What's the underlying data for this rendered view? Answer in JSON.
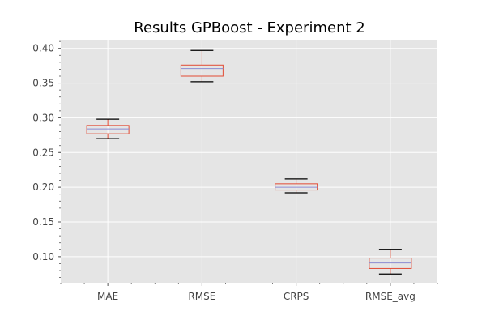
{
  "chart_data": {
    "type": "box",
    "title": "Results GPBoost - Experiment 2",
    "xlabel": "",
    "ylabel": "",
    "categories": [
      "MAE",
      "RMSE",
      "CRPS",
      "RMSE_avg"
    ],
    "boxes": [
      {
        "name": "MAE",
        "whisker_low": 0.27,
        "q1": 0.277,
        "median": 0.284,
        "q3": 0.289,
        "whisker_high": 0.298
      },
      {
        "name": "RMSE",
        "whisker_low": 0.352,
        "q1": 0.36,
        "median": 0.371,
        "q3": 0.376,
        "whisker_high": 0.397
      },
      {
        "name": "CRPS",
        "whisker_low": 0.192,
        "q1": 0.196,
        "median": 0.2,
        "q3": 0.205,
        "whisker_high": 0.212
      },
      {
        "name": "RMSE_avg",
        "whisker_low": 0.075,
        "q1": 0.083,
        "median": 0.091,
        "q3": 0.098,
        "whisker_high": 0.11
      }
    ],
    "ylim": [
      0.0625,
      0.4125
    ],
    "yticks": [
      0.1,
      0.15,
      0.2,
      0.25,
      0.3,
      0.35,
      0.4
    ],
    "ytick_labels": [
      "0.10",
      "0.15",
      "0.20",
      "0.25",
      "0.30",
      "0.35",
      "0.40"
    ],
    "grid": true,
    "legend": "none",
    "colors": {
      "plot_background": "#e5e5e5",
      "grid": "#ffffff",
      "box": "#e24a33",
      "median": "#8a8ad0",
      "cap": "#000000",
      "tick": "#555555"
    }
  }
}
